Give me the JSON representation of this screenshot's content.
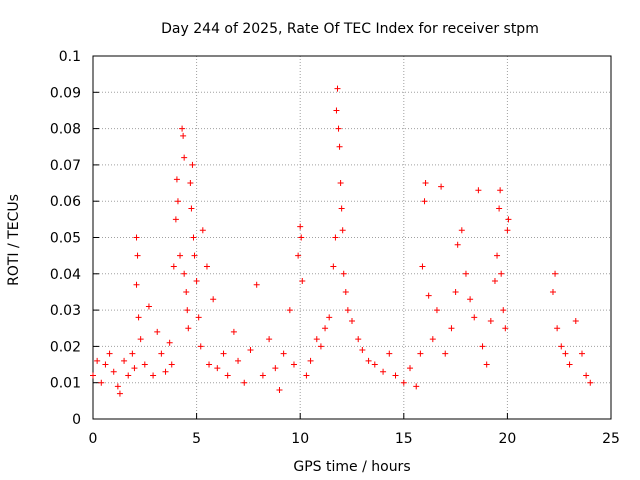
{
  "chart_data": {
    "type": "scatter",
    "title": "Day 244 of 2025, Rate Of TEC Index for receiver stpm",
    "xlabel": "GPS time / hours",
    "ylabel": "ROTI / TECUs",
    "xlim": [
      0,
      25
    ],
    "ylim": [
      0,
      0.1
    ],
    "x_ticks": [
      "0",
      "5",
      "10",
      "15",
      "20",
      "25"
    ],
    "y_ticks": [
      "0",
      "0.01",
      "0.02",
      "0.03",
      "0.04",
      "0.05",
      "0.06",
      "0.07",
      "0.08",
      "0.09",
      "0.1"
    ],
    "grid": true,
    "marker": "+",
    "color": "#ff0000",
    "series": [
      {
        "points": [
          [
            0.0,
            0.012
          ],
          [
            0.2,
            0.016
          ],
          [
            0.4,
            0.01
          ],
          [
            0.6,
            0.015
          ],
          [
            0.8,
            0.018
          ],
          [
            1.0,
            0.013
          ],
          [
            1.2,
            0.009
          ],
          [
            1.3,
            0.007
          ],
          [
            1.5,
            0.016
          ],
          [
            1.7,
            0.012
          ],
          [
            1.9,
            0.018
          ],
          [
            2.0,
            0.014
          ],
          [
            2.1,
            0.037
          ],
          [
            2.15,
            0.045
          ],
          [
            2.1,
            0.05
          ],
          [
            2.2,
            0.028
          ],
          [
            2.3,
            0.022
          ],
          [
            2.5,
            0.015
          ],
          [
            2.7,
            0.031
          ],
          [
            2.9,
            0.012
          ],
          [
            3.1,
            0.024
          ],
          [
            3.3,
            0.018
          ],
          [
            3.5,
            0.013
          ],
          [
            3.7,
            0.021
          ],
          [
            3.8,
            0.015
          ],
          [
            3.9,
            0.042
          ],
          [
            4.0,
            0.055
          ],
          [
            4.05,
            0.066
          ],
          [
            4.1,
            0.06
          ],
          [
            4.2,
            0.045
          ],
          [
            4.3,
            0.08
          ],
          [
            4.35,
            0.078
          ],
          [
            4.4,
            0.072
          ],
          [
            4.4,
            0.04
          ],
          [
            4.5,
            0.035
          ],
          [
            4.55,
            0.03
          ],
          [
            4.6,
            0.025
          ],
          [
            4.7,
            0.065
          ],
          [
            4.75,
            0.058
          ],
          [
            4.8,
            0.07
          ],
          [
            4.85,
            0.05
          ],
          [
            4.9,
            0.045
          ],
          [
            5.0,
            0.038
          ],
          [
            5.1,
            0.028
          ],
          [
            5.2,
            0.02
          ],
          [
            5.3,
            0.052
          ],
          [
            5.5,
            0.042
          ],
          [
            5.6,
            0.015
          ],
          [
            5.8,
            0.033
          ],
          [
            6.0,
            0.014
          ],
          [
            6.3,
            0.018
          ],
          [
            6.5,
            0.012
          ],
          [
            6.8,
            0.024
          ],
          [
            7.0,
            0.016
          ],
          [
            7.3,
            0.01
          ],
          [
            7.6,
            0.019
          ],
          [
            7.9,
            0.037
          ],
          [
            8.2,
            0.012
          ],
          [
            8.5,
            0.022
          ],
          [
            8.8,
            0.014
          ],
          [
            9.0,
            0.008
          ],
          [
            9.2,
            0.018
          ],
          [
            9.5,
            0.03
          ],
          [
            9.7,
            0.015
          ],
          [
            9.9,
            0.045
          ],
          [
            10.0,
            0.053
          ],
          [
            10.05,
            0.05
          ],
          [
            10.1,
            0.038
          ],
          [
            10.3,
            0.012
          ],
          [
            10.5,
            0.016
          ],
          [
            10.8,
            0.022
          ],
          [
            11.0,
            0.02
          ],
          [
            11.2,
            0.025
          ],
          [
            11.4,
            0.028
          ],
          [
            11.6,
            0.042
          ],
          [
            11.7,
            0.05
          ],
          [
            11.75,
            0.085
          ],
          [
            11.8,
            0.091
          ],
          [
            11.85,
            0.08
          ],
          [
            11.9,
            0.075
          ],
          [
            11.95,
            0.065
          ],
          [
            12.0,
            0.058
          ],
          [
            12.05,
            0.052
          ],
          [
            12.1,
            0.04
          ],
          [
            12.2,
            0.035
          ],
          [
            12.3,
            0.03
          ],
          [
            12.5,
            0.027
          ],
          [
            12.8,
            0.022
          ],
          [
            13.0,
            0.019
          ],
          [
            13.3,
            0.016
          ],
          [
            13.6,
            0.015
          ],
          [
            14.0,
            0.013
          ],
          [
            14.3,
            0.018
          ],
          [
            14.6,
            0.012
          ],
          [
            15.0,
            0.01
          ],
          [
            15.3,
            0.014
          ],
          [
            15.6,
            0.009
          ],
          [
            15.8,
            0.018
          ],
          [
            15.9,
            0.042
          ],
          [
            16.0,
            0.06
          ],
          [
            16.05,
            0.065
          ],
          [
            16.2,
            0.034
          ],
          [
            16.4,
            0.022
          ],
          [
            16.6,
            0.03
          ],
          [
            16.8,
            0.064
          ],
          [
            17.0,
            0.018
          ],
          [
            17.3,
            0.025
          ],
          [
            17.5,
            0.035
          ],
          [
            17.6,
            0.048
          ],
          [
            17.8,
            0.052
          ],
          [
            18.0,
            0.04
          ],
          [
            18.2,
            0.033
          ],
          [
            18.4,
            0.028
          ],
          [
            18.6,
            0.063
          ],
          [
            18.8,
            0.02
          ],
          [
            19.0,
            0.015
          ],
          [
            19.2,
            0.027
          ],
          [
            19.4,
            0.038
          ],
          [
            19.5,
            0.045
          ],
          [
            19.6,
            0.058
          ],
          [
            19.65,
            0.063
          ],
          [
            19.7,
            0.04
          ],
          [
            19.8,
            0.03
          ],
          [
            19.9,
            0.025
          ],
          [
            20.0,
            0.052
          ],
          [
            20.05,
            0.055
          ],
          [
            22.2,
            0.035
          ],
          [
            22.3,
            0.04
          ],
          [
            22.4,
            0.025
          ],
          [
            22.6,
            0.02
          ],
          [
            22.8,
            0.018
          ],
          [
            23.0,
            0.015
          ],
          [
            23.3,
            0.027
          ],
          [
            23.6,
            0.018
          ],
          [
            23.8,
            0.012
          ],
          [
            24.0,
            0.01
          ]
        ]
      }
    ]
  }
}
